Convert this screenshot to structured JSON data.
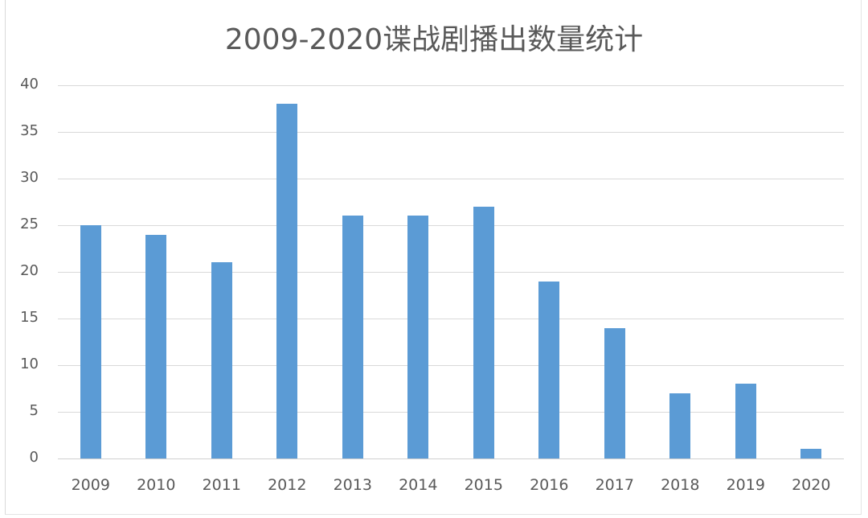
{
  "chart_data": {
    "type": "bar",
    "title": "2009-2020谍战剧播出数量统计",
    "xlabel": "",
    "ylabel": "",
    "categories": [
      "2009",
      "2010",
      "2011",
      "2012",
      "2013",
      "2014",
      "2015",
      "2016",
      "2017",
      "2018",
      "2019",
      "2020"
    ],
    "values": [
      25,
      24,
      21,
      38,
      26,
      26,
      27,
      19,
      14,
      7,
      8,
      1
    ],
    "ylim": [
      0,
      40
    ],
    "yticks": [
      "0",
      "5",
      "10",
      "15",
      "20",
      "25",
      "30",
      "35",
      "40"
    ],
    "grid": true,
    "legend": "none",
    "bar_color": "#5b9bd5"
  }
}
